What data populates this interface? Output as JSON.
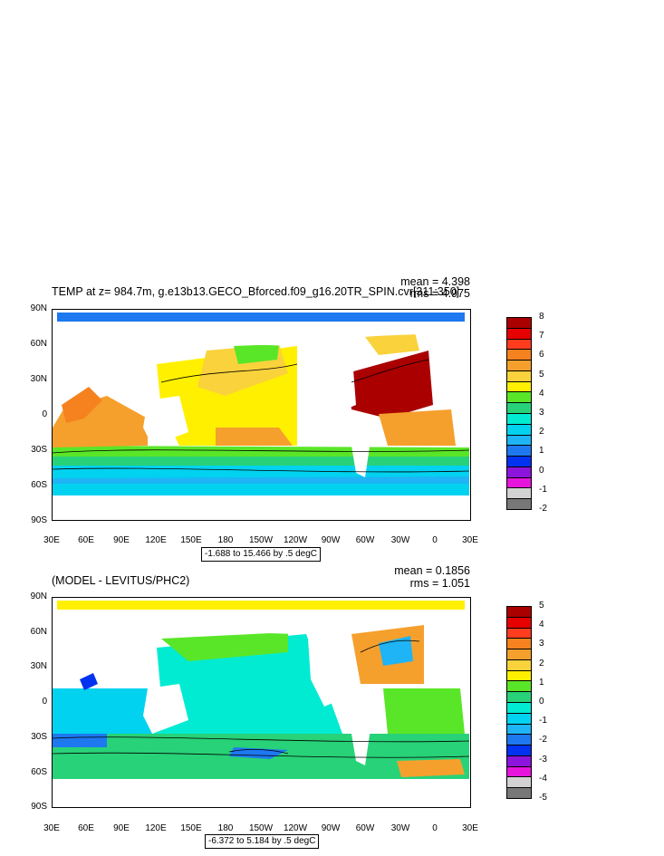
{
  "panels": [
    {
      "title": "TEMP at z= 984.7m, g.e13b13.GECO_Bforced.f09_g16.20TR_SPIN.cvr[311:350]",
      "mean": "mean = 4.398",
      "rms": "rms = 4.975",
      "info": "-1.688 to 15.466 by .5 degC",
      "colorbar_labels": [
        "8",
        "7",
        "6",
        "5",
        "4",
        "3",
        "2",
        "1",
        "0",
        "-1",
        "-2"
      ],
      "colorbar_colors": [
        "#aa0000",
        "#e60000",
        "#ff3c1e",
        "#f5821e",
        "#f5a02d",
        "#fad23c",
        "#fff000",
        "#5ae628",
        "#28d278",
        "#00ebd2",
        "#00d2f0",
        "#1eb4f5",
        "#1e78f0",
        "#0032f0",
        "#8c14dc",
        "#e614dc",
        "#d2d2d2",
        "#787878"
      ]
    },
    {
      "title": "(MODEL - LEVITUS/PHC2)",
      "mean": "mean = 0.1856",
      "rms": "rms = 1.051",
      "info": "-6.372 to 5.184 by .5 degC",
      "colorbar_labels": [
        "5",
        "4",
        "3",
        "2",
        "1",
        "0",
        "-1",
        "-2",
        "-3",
        "-4",
        "-5"
      ],
      "colorbar_colors": [
        "#aa0000",
        "#e60000",
        "#ff3c1e",
        "#f5821e",
        "#f5a02d",
        "#fad23c",
        "#fff000",
        "#5ae628",
        "#28d278",
        "#00ebd2",
        "#00d2f0",
        "#1eb4f5",
        "#1e78f0",
        "#0032f0",
        "#8c14dc",
        "#e614dc",
        "#d2d2d2",
        "#787878"
      ]
    }
  ],
  "axes": {
    "y_labels": [
      "90N",
      "60N",
      "30N",
      "0",
      "30S",
      "60S",
      "90S"
    ],
    "x_labels": [
      "30E",
      "60E",
      "90E",
      "120E",
      "150E",
      "180",
      "150W",
      "120W",
      "90W",
      "60W",
      "30W",
      "0",
      "30E"
    ]
  }
}
